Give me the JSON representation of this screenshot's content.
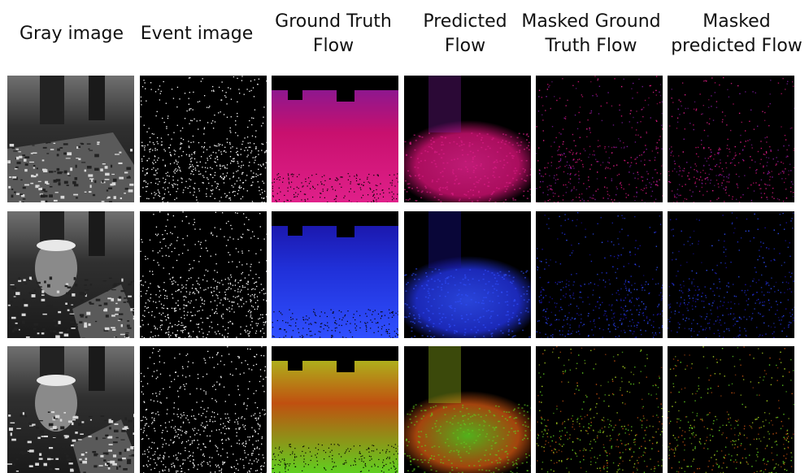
{
  "columns": [
    {
      "key": "gray",
      "label": "Gray image"
    },
    {
      "key": "event",
      "label": "Event image"
    },
    {
      "key": "gt",
      "label": "Ground Truth\nFlow"
    },
    {
      "key": "pred",
      "label": "Predicted\nFlow"
    },
    {
      "key": "mgt",
      "label": "Masked Ground\nTruth Flow"
    },
    {
      "key": "mpred",
      "label": "Masked\npredicted Flow"
    }
  ],
  "rows": [
    {
      "flow_colors": [
        "#c8106e",
        "#e0208a",
        "#7a1a9a"
      ]
    },
    {
      "flow_colors": [
        "#2030d8",
        "#3050ff",
        "#1a10a0"
      ]
    },
    {
      "flow_colors": [
        "#c05010",
        "#60d020",
        "#a8d020"
      ]
    }
  ]
}
